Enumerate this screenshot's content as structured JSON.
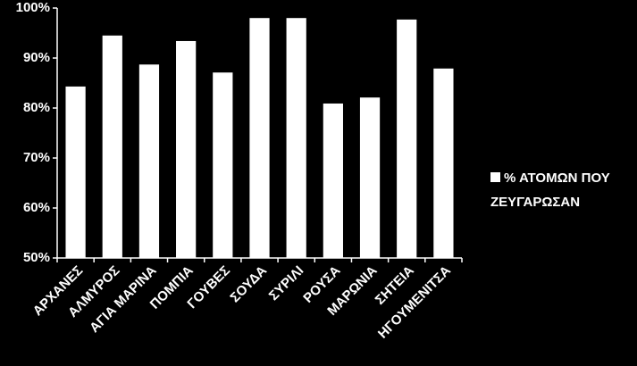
{
  "chart_data": {
    "type": "bar",
    "categories": [
      "ΑΡΧΑΝΕΣ",
      "ΑΛΜΥΡΟΣ",
      "ΑΓΙΑ ΜΑΡΙΝΑ",
      "ΠΟΜΠΙΑ",
      "ΓΟΥΒΕΣ",
      "ΣΟΥΔΑ",
      "ΣΥΡΙΛΙ",
      "ΡΟΥΣΑ",
      "ΜΑΡΩΝΙΑ",
      "ΣΗΤΕΙΑ",
      "ΗΓΟΥΜΕΝΙΤΣΑ"
    ],
    "series": [
      {
        "name": "% ΑΤΟΜΩΝ ΠΟΥ ΖΕΥΓΑΡΩΣΑΝ",
        "color": "#ffffff",
        "values": [
          84.3,
          94.5,
          88.7,
          93.4,
          87.1,
          98,
          98,
          80.9,
          82.1,
          97.7,
          87.9
        ]
      }
    ],
    "ylim": [
      50,
      100
    ],
    "yticks": [
      {
        "value": 50,
        "label": "50%"
      },
      {
        "value": 60,
        "label": "60%"
      },
      {
        "value": 70,
        "label": "70%"
      },
      {
        "value": 80,
        "label": "80%"
      },
      {
        "value": 90,
        "label": "90%"
      },
      {
        "value": 100,
        "label": "100%"
      }
    ],
    "legend": "right"
  }
}
